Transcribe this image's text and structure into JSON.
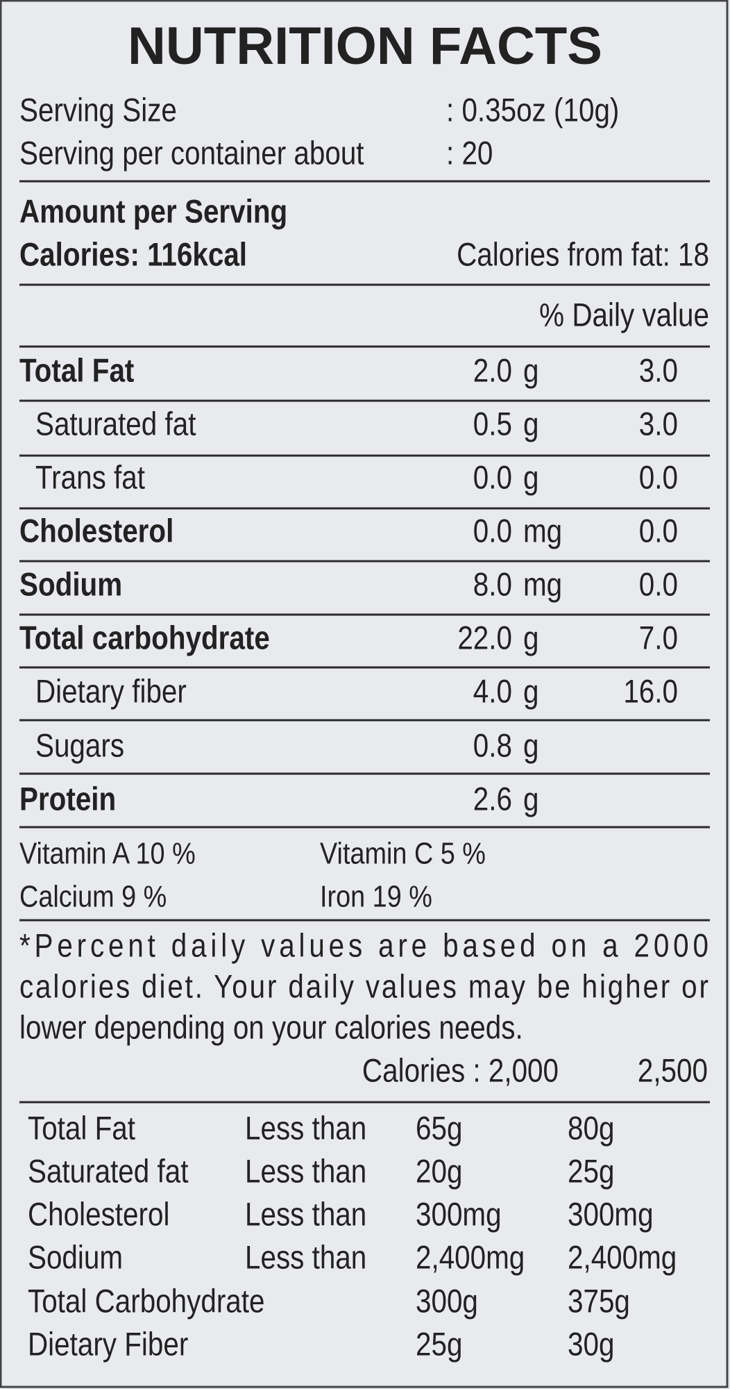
{
  "title": "NUTRITION FACTS",
  "serving": [
    {
      "label": "Serving Size",
      "value": ": 0.35oz (10g)"
    },
    {
      "label": "Serving per container about",
      "value": ": 20"
    }
  ],
  "amount_header": "Amount per Serving",
  "calories": "Calories: 116kcal",
  "calories_from_fat": "Calories from fat: 18",
  "daily_value_header": "% Daily value",
  "nutrients": [
    {
      "name": "Total Fat",
      "amount": "2.0",
      "unit": "g",
      "daily": "3.0",
      "bold": true,
      "indent": false
    },
    {
      "name": "Saturated fat",
      "amount": "0.5",
      "unit": "g",
      "daily": "3.0",
      "bold": false,
      "indent": true
    },
    {
      "name": "Trans fat",
      "amount": "0.0",
      "unit": "g",
      "daily": "0.0",
      "bold": false,
      "indent": true
    },
    {
      "name": "Cholesterol",
      "amount": "0.0",
      "unit": "mg",
      "daily": "0.0",
      "bold": true,
      "indent": false
    },
    {
      "name": "Sodium",
      "amount": "8.0",
      "unit": "mg",
      "daily": "0.0",
      "bold": true,
      "indent": false
    },
    {
      "name": "Total carbohydrate",
      "amount": "22.0",
      "unit": "g",
      "daily": "7.0",
      "bold": true,
      "indent": false
    },
    {
      "name": "Dietary fiber",
      "amount": "4.0",
      "unit": "g",
      "daily": "16.0",
      "bold": false,
      "indent": true
    },
    {
      "name": "Sugars",
      "amount": "0.8",
      "unit": "g",
      "daily": null,
      "bold": false,
      "indent": true
    },
    {
      "name": "Protein",
      "amount": "2.6",
      "unit": "g",
      "daily": null,
      "bold": true,
      "indent": false
    }
  ],
  "vitamins": [
    [
      "Vitamin A  10 %",
      "Vitamin C 5 %"
    ],
    [
      "Calcium  9 %",
      "Iron 19 %"
    ]
  ],
  "footnote": [
    "*Percent daily values are based on a 2000",
    "calories diet. Your daily values may be higher or",
    "lower depending on your calories needs."
  ],
  "calories_header": [
    "Calories : 2,000",
    "2,500"
  ],
  "reference": [
    [
      "Total Fat",
      "Less than",
      "65g",
      "80g"
    ],
    [
      "Saturated fat",
      "Less than",
      "20g",
      "25g"
    ],
    [
      "Cholesterol",
      "Less than",
      "300mg",
      "300mg"
    ],
    [
      "Sodium",
      "Less than",
      "2,400mg",
      "2,400mg"
    ],
    [
      "Total Carbohydrate",
      null,
      "300g",
      "375g"
    ],
    [
      "Dietary Fiber",
      null,
      "25g",
      "30g"
    ]
  ]
}
